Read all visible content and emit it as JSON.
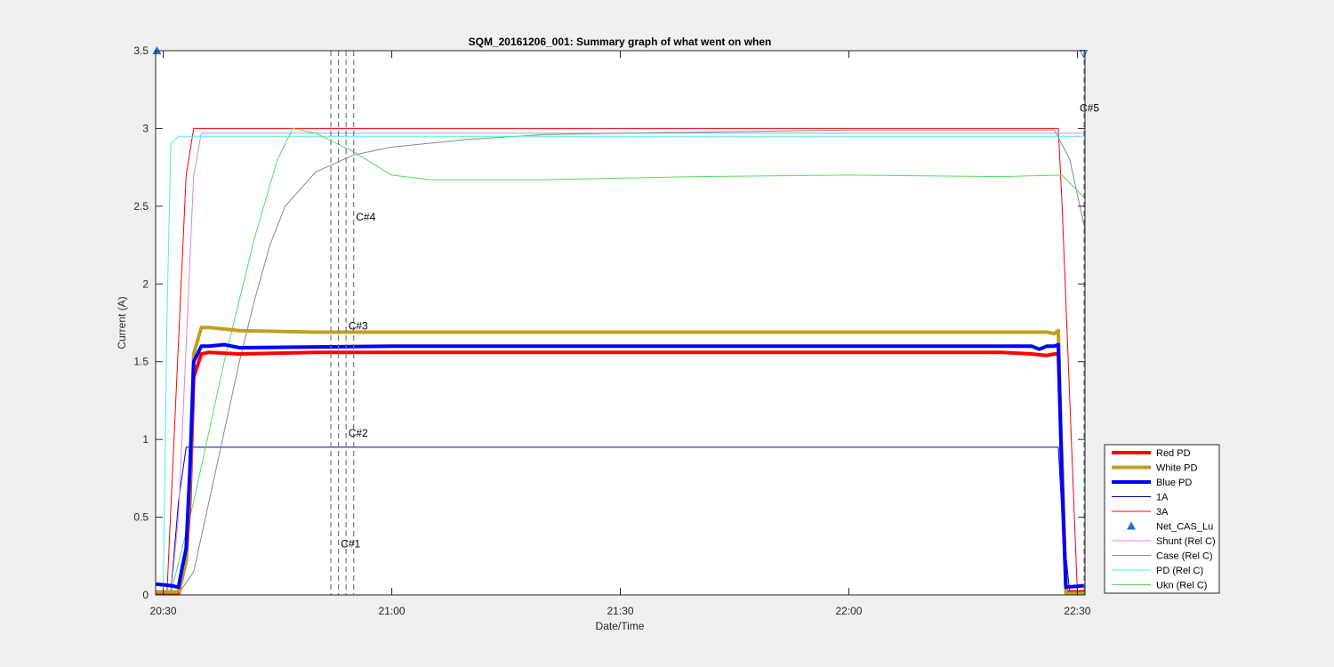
{
  "chart_data": {
    "type": "line",
    "title": "SQM_20161206_001: Summary graph of what went on when",
    "xlabel": "Date/Time",
    "ylabel": "Current (A)",
    "x_unit": "time of day",
    "xlim": [
      "20:29",
      "22:31"
    ],
    "ylim": [
      0,
      3.5
    ],
    "xticks": [
      "20:30",
      "21:00",
      "21:30",
      "22:00",
      "22:30"
    ],
    "yticks": [
      "0",
      "0.5",
      "1",
      "1.5",
      "2",
      "2.5",
      "3",
      "3.5"
    ],
    "grid": false,
    "legend_position": "bottom-right outside",
    "series": [
      {
        "name": "Red PD",
        "color": "#ff0000",
        "width": 4,
        "x": [
          "20:29",
          "20:32",
          "20:33",
          "20:33:30",
          "20:34",
          "20:35",
          "20:36",
          "20:40",
          "20:50",
          "21:00",
          "21:30",
          "22:00",
          "22:20",
          "22:24",
          "22:26",
          "22:27",
          "22:27:30",
          "22:28",
          "22:28:30",
          "22:31"
        ],
        "y": [
          0.01,
          0.01,
          0.22,
          0.6,
          1.4,
          1.55,
          1.56,
          1.55,
          1.56,
          1.56,
          1.56,
          1.56,
          1.56,
          1.55,
          1.54,
          1.55,
          1.55,
          0.8,
          0.02,
          0.02
        ]
      },
      {
        "name": "White PD",
        "color": "#c0a020",
        "width": 4,
        "x": [
          "20:29",
          "20:32",
          "20:33",
          "20:33:30",
          "20:34",
          "20:35",
          "20:36",
          "20:38",
          "20:40",
          "20:50",
          "21:00",
          "21:30",
          "22:00",
          "22:26",
          "22:27",
          "22:27:30",
          "22:28",
          "22:28:30",
          "22:31"
        ],
        "y": [
          0.02,
          0.02,
          0.22,
          0.7,
          1.55,
          1.72,
          1.72,
          1.71,
          1.7,
          1.69,
          1.69,
          1.69,
          1.69,
          1.69,
          1.68,
          1.7,
          0.7,
          0.01,
          0.01
        ]
      },
      {
        "name": "Blue PD",
        "color": "#0000ff",
        "width": 4,
        "x": [
          "20:29",
          "20:31",
          "20:32",
          "20:32:30",
          "20:33",
          "20:33:30",
          "20:34",
          "20:35",
          "20:36",
          "20:38",
          "20:40",
          "21:00",
          "21:30",
          "22:00",
          "22:24",
          "22:25",
          "22:26",
          "22:27",
          "22:27:30",
          "22:28",
          "22:28:30",
          "22:31"
        ],
        "y": [
          0.07,
          0.06,
          0.05,
          0.18,
          0.3,
          0.8,
          1.5,
          1.6,
          1.6,
          1.61,
          1.59,
          1.6,
          1.6,
          1.6,
          1.6,
          1.58,
          1.6,
          1.6,
          1.61,
          0.7,
          0.05,
          0.06
        ]
      },
      {
        "name": "1A",
        "color": "#0000aa",
        "width": 1,
        "x": [
          "20:29",
          "20:31",
          "20:32",
          "20:33",
          "21:00",
          "21:30",
          "22:00",
          "22:27:30",
          "22:28",
          "22:29",
          "22:31"
        ],
        "y": [
          0.02,
          0.02,
          0.6,
          0.95,
          0.95,
          0.95,
          0.95,
          0.95,
          0.5,
          0.01,
          0.01
        ]
      },
      {
        "name": "3A",
        "color": "#ff0000",
        "width": 1,
        "x": [
          "20:29",
          "20:30:30",
          "20:33",
          "20:34",
          "21:00",
          "21:30",
          "22:00",
          "22:27:30",
          "22:28",
          "22:30",
          "22:31"
        ],
        "y": [
          0.02,
          0.02,
          2.7,
          3.0,
          3.0,
          3.0,
          3.0,
          3.0,
          2.5,
          0.02,
          0.02
        ]
      },
      {
        "name": "Net_CAS_Lu",
        "color": "#1a70e0",
        "marker": "triangle",
        "x": [
          "20:29:10"
        ],
        "y": [
          3.5
        ]
      },
      {
        "name": "Shunt (Rel C)",
        "color": "#e080e8",
        "width": 1,
        "x": [
          "20:29",
          "20:31",
          "20:32",
          "20:34",
          "20:35",
          "21:00",
          "21:30",
          "22:00",
          "22:28",
          "22:31"
        ],
        "y": [
          0.01,
          0.01,
          0.5,
          2.7,
          2.97,
          2.97,
          2.97,
          2.97,
          2.97,
          2.97
        ]
      },
      {
        "name": "Case (Rel C)",
        "color": "#888888",
        "width": 1,
        "x": [
          "20:29",
          "20:32",
          "20:34",
          "20:36",
          "20:38",
          "20:40",
          "20:42",
          "20:44",
          "20:46",
          "20:50",
          "20:55",
          "21:00",
          "21:10",
          "21:20",
          "21:30",
          "22:00",
          "22:27",
          "22:29",
          "22:31"
        ],
        "y": [
          0.01,
          0.01,
          0.15,
          0.6,
          1.05,
          1.5,
          1.9,
          2.25,
          2.5,
          2.72,
          2.83,
          2.88,
          2.93,
          2.96,
          2.97,
          2.99,
          2.99,
          2.8,
          2.35
        ]
      },
      {
        "name": "PD (Rel C)",
        "color": "#40f0f0",
        "width": 1,
        "x": [
          "20:29",
          "20:30",
          "20:30:30",
          "20:31",
          "20:32",
          "21:00",
          "21:30",
          "22:00",
          "22:28",
          "22:31"
        ],
        "y": [
          0.01,
          0.01,
          1.8,
          2.9,
          2.95,
          2.95,
          2.95,
          2.95,
          2.95,
          2.95
        ]
      },
      {
        "name": "Ukn (Rel C)",
        "color": "#50e050",
        "width": 1,
        "x": [
          "20:29",
          "20:31",
          "20:34",
          "20:38",
          "20:42",
          "20:45",
          "20:47",
          "20:50",
          "20:55",
          "21:00",
          "21:05",
          "21:20",
          "21:40",
          "22:00",
          "22:20",
          "22:28",
          "22:30",
          "22:31"
        ],
        "y": [
          0.01,
          0.01,
          0.6,
          1.5,
          2.3,
          2.8,
          3.0,
          2.97,
          2.85,
          2.7,
          2.67,
          2.67,
          2.69,
          2.7,
          2.69,
          2.7,
          2.6,
          2.55
        ]
      }
    ],
    "vlines": {
      "color": "#777777",
      "style": "dashed",
      "x": [
        "20:52",
        "20:53",
        "20:54",
        "20:55"
      ]
    },
    "annotations": [
      {
        "text": "C#1",
        "x": "20:54",
        "y": 0.33
      },
      {
        "text": "C#2",
        "x": "20:55",
        "y": 1.04
      },
      {
        "text": "C#3",
        "x": "20:55",
        "y": 1.73
      },
      {
        "text": "C#4",
        "x": "20:56",
        "y": 2.43
      },
      {
        "text": "C#5",
        "x": "22:31",
        "y": 3.13
      },
      {
        "text": "",
        "x": "22:30:50",
        "y": 3.48,
        "marker": "triangle-down"
      }
    ]
  }
}
